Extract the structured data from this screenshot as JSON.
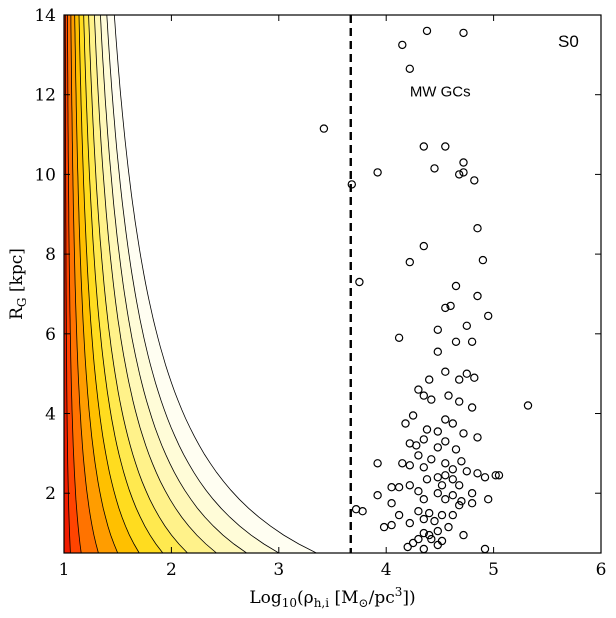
{
  "chart_data": {
    "type": "scatter",
    "xlabel": "Log10(ρh,i [M⊙/pc3])",
    "ylabel": "RG [kpc]",
    "xlim": [
      1,
      6
    ],
    "ylim": [
      0.5,
      14
    ],
    "x_ticks": [
      1,
      2,
      3,
      4,
      5,
      6
    ],
    "y_ticks": [
      2,
      4,
      6,
      8,
      10,
      12,
      14
    ],
    "grid": false,
    "annotations": [
      "MW GCs",
      "S0"
    ],
    "vline": {
      "x": 3.67,
      "style": "dashed"
    },
    "contours": {
      "description_free": true,
      "levels": [
        {
          "x_at_bottom": 3.35,
          "color": "#fffef2"
        },
        {
          "x_at_bottom": 3.0,
          "color": "#fffcd8"
        },
        {
          "x_at_bottom": 2.7,
          "color": "#fff8b8"
        },
        {
          "x_at_bottom": 2.42,
          "color": "#fff28a"
        },
        {
          "x_at_bottom": 2.15,
          "color": "#ffe94f"
        },
        {
          "x_at_bottom": 1.92,
          "color": "#ffdc1f"
        },
        {
          "x_at_bottom": 1.7,
          "color": "#ffc000"
        },
        {
          "x_at_bottom": 1.5,
          "color": "#ff9d00"
        },
        {
          "x_at_bottom": 1.32,
          "color": "#ff7300"
        },
        {
          "x_at_bottom": 1.16,
          "color": "#ff4400"
        },
        {
          "x_at_bottom": 1.06,
          "color": "#f01c00"
        }
      ]
    },
    "series": [
      {
        "marker": "open-circle",
        "points": [
          [
            4.38,
            13.6
          ],
          [
            4.72,
            13.55
          ],
          [
            4.15,
            13.25
          ],
          [
            4.22,
            12.65
          ],
          [
            3.42,
            11.15
          ],
          [
            4.35,
            10.7
          ],
          [
            4.55,
            10.7
          ],
          [
            3.92,
            10.05
          ],
          [
            4.72,
            10.3
          ],
          [
            4.45,
            10.15
          ],
          [
            4.68,
            10.0
          ],
          [
            4.72,
            10.05
          ],
          [
            4.82,
            9.85
          ],
          [
            3.68,
            9.75
          ],
          [
            4.85,
            8.65
          ],
          [
            4.35,
            8.2
          ],
          [
            4.22,
            7.8
          ],
          [
            4.9,
            7.85
          ],
          [
            3.75,
            7.3
          ],
          [
            4.65,
            7.2
          ],
          [
            4.55,
            6.65
          ],
          [
            4.6,
            6.7
          ],
          [
            4.85,
            6.95
          ],
          [
            4.95,
            6.45
          ],
          [
            4.48,
            6.1
          ],
          [
            4.75,
            6.2
          ],
          [
            4.12,
            5.9
          ],
          [
            4.65,
            5.8
          ],
          [
            4.8,
            5.8
          ],
          [
            4.48,
            5.55
          ],
          [
            4.55,
            5.05
          ],
          [
            4.4,
            4.85
          ],
          [
            4.68,
            4.85
          ],
          [
            4.75,
            5.0
          ],
          [
            4.82,
            4.9
          ],
          [
            4.3,
            4.6
          ],
          [
            4.35,
            4.45
          ],
          [
            4.58,
            4.45
          ],
          [
            4.42,
            4.35
          ],
          [
            4.68,
            4.3
          ],
          [
            4.8,
            4.15
          ],
          [
            4.25,
            3.95
          ],
          [
            4.55,
            3.85
          ],
          [
            4.18,
            3.75
          ],
          [
            4.62,
            3.75
          ],
          [
            4.38,
            3.6
          ],
          [
            4.48,
            3.55
          ],
          [
            4.72,
            3.5
          ],
          [
            4.85,
            3.4
          ],
          [
            4.35,
            3.35
          ],
          [
            4.55,
            3.3
          ],
          [
            4.28,
            3.2
          ],
          [
            4.22,
            3.25
          ],
          [
            4.48,
            3.15
          ],
          [
            4.65,
            3.1
          ],
          [
            4.3,
            2.95
          ],
          [
            4.42,
            2.85
          ],
          [
            4.55,
            2.75
          ],
          [
            4.7,
            2.8
          ],
          [
            4.22,
            2.7
          ],
          [
            4.35,
            2.65
          ],
          [
            4.62,
            2.6
          ],
          [
            4.75,
            2.55
          ],
          [
            3.92,
            2.75
          ],
          [
            4.15,
            2.75
          ],
          [
            4.55,
            2.45
          ],
          [
            4.48,
            2.4
          ],
          [
            4.62,
            2.35
          ],
          [
            4.85,
            2.5
          ],
          [
            4.92,
            2.4
          ],
          [
            5.02,
            2.45
          ],
          [
            5.05,
            2.45
          ],
          [
            4.38,
            2.35
          ],
          [
            4.22,
            2.2
          ],
          [
            4.05,
            2.15
          ],
          [
            4.12,
            2.15
          ],
          [
            4.52,
            2.2
          ],
          [
            4.68,
            2.2
          ],
          [
            4.3,
            2.05
          ],
          [
            4.48,
            2.0
          ],
          [
            4.62,
            1.95
          ],
          [
            4.8,
            2.0
          ],
          [
            3.92,
            1.95
          ],
          [
            4.35,
            1.85
          ],
          [
            4.55,
            1.85
          ],
          [
            4.7,
            1.8
          ],
          [
            4.8,
            1.75
          ],
          [
            4.95,
            1.85
          ],
          [
            4.05,
            1.75
          ],
          [
            4.68,
            1.7
          ],
          [
            3.72,
            1.6
          ],
          [
            3.78,
            1.55
          ],
          [
            4.3,
            1.55
          ],
          [
            4.4,
            1.5
          ],
          [
            4.52,
            1.45
          ],
          [
            4.62,
            1.45
          ],
          [
            4.12,
            1.45
          ],
          [
            4.35,
            1.35
          ],
          [
            4.45,
            1.3
          ],
          [
            4.22,
            1.25
          ],
          [
            4.05,
            1.2
          ],
          [
            3.98,
            1.15
          ],
          [
            4.58,
            1.15
          ],
          [
            4.48,
            1.05
          ],
          [
            4.35,
            1.0
          ],
          [
            4.4,
            0.95
          ],
          [
            4.72,
            0.95
          ],
          [
            4.3,
            0.85
          ],
          [
            4.42,
            0.85
          ],
          [
            4.52,
            0.8
          ],
          [
            4.25,
            0.75
          ],
          [
            4.48,
            0.7
          ],
          [
            4.2,
            0.65
          ],
          [
            4.35,
            0.6
          ],
          [
            4.92,
            0.6
          ],
          [
            5.32,
            4.2
          ]
        ]
      }
    ]
  }
}
